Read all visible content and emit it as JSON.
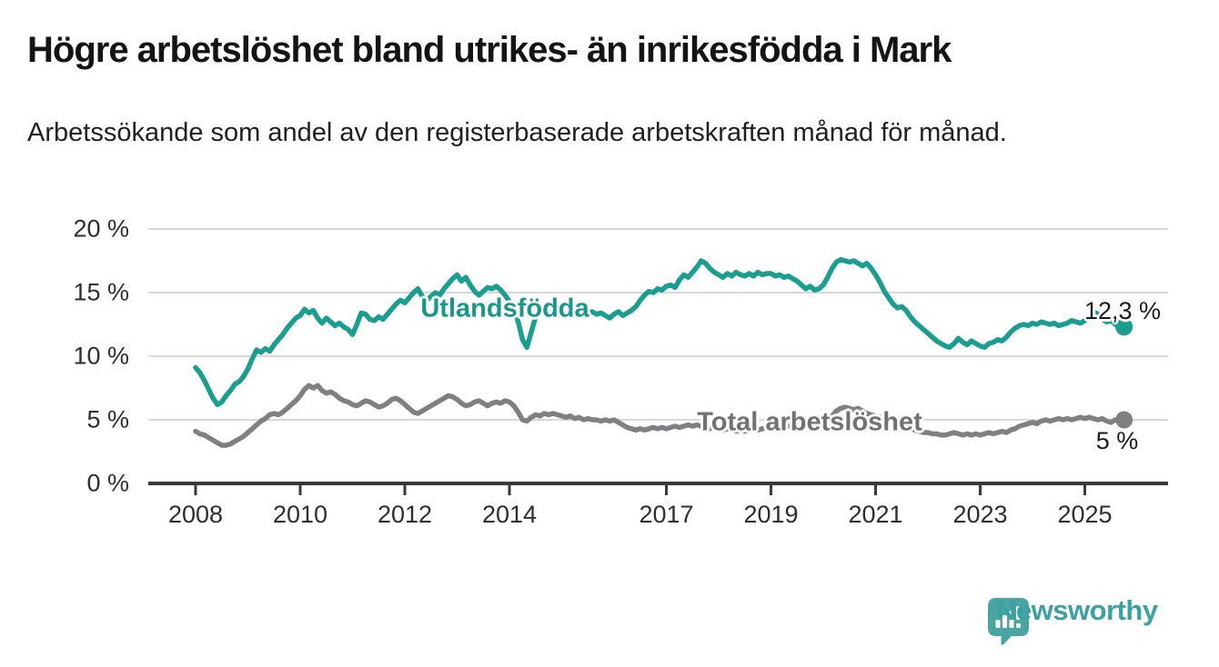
{
  "header": {
    "title": "Högre arbetslöshet bland utrikes- än inrikesfödda i Mark",
    "subtitle": "Arbetssökande som andel av den registerbaserade arbetskraften månad för månad."
  },
  "chart_data": {
    "type": "line",
    "title": "Högre arbetslöshet bland utrikes- än inrikesfödda i Mark",
    "unit": "%",
    "grid": "horizontal",
    "legend_position": "inline-on-line",
    "x_axis": {
      "ticks": [
        {
          "v": 2008,
          "label": "2008"
        },
        {
          "v": 2010,
          "label": "2010"
        },
        {
          "v": 2012,
          "label": "2012"
        },
        {
          "v": 2014,
          "label": "2014"
        },
        {
          "v": 2017,
          "label": "2017"
        },
        {
          "v": 2019,
          "label": "2019"
        },
        {
          "v": 2021,
          "label": "2021"
        },
        {
          "v": 2023,
          "label": "2023"
        },
        {
          "v": 2025,
          "label": "2025"
        }
      ]
    },
    "y_axis": {
      "range": [
        0,
        20
      ],
      "ticks": [
        {
          "v": 0,
          "label": "0 %"
        },
        {
          "v": 5,
          "label": "5 %"
        },
        {
          "v": 10,
          "label": "10 %"
        },
        {
          "v": 15,
          "label": "15 %"
        },
        {
          "v": 20,
          "label": "20 %"
        }
      ]
    },
    "series": [
      {
        "name": "Utlandsfödda",
        "color": "#1a9e8f",
        "start_year": 2008,
        "start_month": 1,
        "frequency": "monthly",
        "end_label": "12,3 %",
        "end_value": 12.3,
        "values": [
          9.1,
          8.7,
          8.1,
          7.4,
          6.7,
          6.2,
          6.4,
          6.9,
          7.3,
          7.8,
          8.0,
          8.4,
          9.0,
          9.8,
          10.5,
          10.3,
          10.6,
          10.4,
          10.9,
          11.3,
          11.7,
          12.2,
          12.6,
          13.0,
          13.2,
          13.7,
          13.4,
          13.6,
          13.0,
          12.6,
          13.0,
          12.7,
          12.4,
          12.6,
          12.3,
          12.1,
          11.7,
          12.5,
          13.4,
          13.3,
          12.9,
          12.8,
          13.1,
          12.9,
          13.3,
          13.7,
          14.1,
          14.4,
          14.2,
          14.6,
          15.0,
          15.3,
          14.7,
          14.4,
          14.7,
          15.0,
          14.8,
          15.3,
          15.7,
          16.1,
          16.4,
          15.9,
          16.2,
          15.6,
          15.1,
          14.8,
          15.1,
          15.4,
          15.3,
          15.5,
          15.2,
          14.8,
          14.3,
          13.7,
          12.7,
          11.3,
          10.7,
          11.9,
          13.1,
          13.4,
          13.3,
          13.5,
          13.4,
          13.2,
          13.4,
          13.2,
          13.5,
          13.3,
          13.4,
          13.2,
          13.4,
          13.5,
          13.3,
          13.4,
          13.2,
          13.0,
          13.3,
          13.5,
          13.2,
          13.4,
          13.6,
          13.9,
          14.4,
          14.8,
          15.1,
          15.0,
          15.3,
          15.2,
          15.5,
          15.6,
          15.4,
          16.0,
          16.4,
          16.2,
          16.6,
          17.0,
          17.5,
          17.3,
          16.9,
          16.6,
          16.4,
          16.2,
          16.5,
          16.3,
          16.6,
          16.4,
          16.3,
          16.5,
          16.3,
          16.6,
          16.4,
          16.5,
          16.5,
          16.3,
          16.4,
          16.2,
          16.3,
          16.1,
          15.9,
          15.6,
          15.3,
          15.5,
          15.2,
          15.3,
          15.6,
          16.2,
          16.9,
          17.4,
          17.6,
          17.5,
          17.4,
          17.5,
          17.3,
          17.1,
          17.3,
          16.9,
          16.4,
          15.8,
          15.1,
          14.6,
          14.1,
          13.8,
          13.9,
          13.6,
          13.1,
          12.7,
          12.4,
          12.1,
          11.8,
          11.5,
          11.2,
          11.0,
          10.8,
          10.7,
          11.0,
          11.4,
          11.1,
          10.9,
          11.2,
          11.0,
          10.8,
          10.7,
          11.0,
          11.1,
          11.3,
          11.2,
          11.5,
          11.9,
          12.2,
          12.4,
          12.5,
          12.4,
          12.6,
          12.5,
          12.7,
          12.6,
          12.5,
          12.6,
          12.4,
          12.5,
          12.6,
          12.8,
          12.7,
          12.6,
          12.8,
          13.1,
          13.5,
          13.3,
          12.9,
          12.7,
          12.8,
          12.5,
          12.3,
          12.3
        ]
      },
      {
        "name": "Total arbetslöshet",
        "color": "#808084",
        "start_year": 2008,
        "start_month": 1,
        "frequency": "monthly",
        "end_label": "5 %",
        "end_value": 5.0,
        "values": [
          4.1,
          3.9,
          3.8,
          3.6,
          3.4,
          3.2,
          3.0,
          3.0,
          3.1,
          3.3,
          3.5,
          3.7,
          4.0,
          4.3,
          4.6,
          4.9,
          5.1,
          5.4,
          5.5,
          5.4,
          5.6,
          5.9,
          6.2,
          6.5,
          6.9,
          7.4,
          7.7,
          7.5,
          7.7,
          7.3,
          7.1,
          7.2,
          7.0,
          6.7,
          6.5,
          6.4,
          6.2,
          6.1,
          6.3,
          6.5,
          6.4,
          6.2,
          6.0,
          6.1,
          6.3,
          6.6,
          6.7,
          6.5,
          6.2,
          5.9,
          5.6,
          5.5,
          5.7,
          5.9,
          6.1,
          6.3,
          6.5,
          6.7,
          6.9,
          6.8,
          6.6,
          6.3,
          6.1,
          6.2,
          6.4,
          6.5,
          6.3,
          6.1,
          6.3,
          6.4,
          6.3,
          6.5,
          6.4,
          6.1,
          5.6,
          5.0,
          4.9,
          5.2,
          5.4,
          5.3,
          5.5,
          5.4,
          5.5,
          5.4,
          5.3,
          5.2,
          5.3,
          5.1,
          5.2,
          5.0,
          5.1,
          5.0,
          5.0,
          4.9,
          5.0,
          4.9,
          5.0,
          4.8,
          4.6,
          4.4,
          4.3,
          4.2,
          4.3,
          4.2,
          4.3,
          4.4,
          4.3,
          4.4,
          4.3,
          4.4,
          4.5,
          4.4,
          4.5,
          4.6,
          4.5,
          4.6,
          4.5,
          4.4,
          4.3,
          4.4,
          4.3,
          4.2,
          4.3,
          4.2,
          4.1,
          4.2,
          4.1,
          4.2,
          4.3,
          4.2,
          4.3,
          4.4,
          4.3,
          4.4,
          4.5,
          4.4,
          4.5,
          4.6,
          4.5,
          4.6,
          4.7,
          4.6,
          4.7,
          4.8,
          4.9,
          5.0,
          5.3,
          5.7,
          5.9,
          6.0,
          5.9,
          5.8,
          5.9,
          5.7,
          5.5,
          5.4,
          5.3,
          5.2,
          5.1,
          5.0,
          4.8,
          4.7,
          4.6,
          4.5,
          4.3,
          4.2,
          4.1,
          4.0,
          4.0,
          3.9,
          3.9,
          3.8,
          3.8,
          3.9,
          4.0,
          3.9,
          3.8,
          3.9,
          3.8,
          3.9,
          3.8,
          3.9,
          4.0,
          3.9,
          4.0,
          4.1,
          4.0,
          4.2,
          4.3,
          4.5,
          4.6,
          4.7,
          4.8,
          4.7,
          4.9,
          5.0,
          4.9,
          5.0,
          5.1,
          5.0,
          5.1,
          5.0,
          5.1,
          5.2,
          5.1,
          5.2,
          5.1,
          5.0,
          5.1,
          4.9,
          4.8,
          5.0,
          5.0,
          5.0
        ]
      }
    ],
    "style": {
      "grid_color": "#d8d8d8",
      "axis_color": "#3a3a3a",
      "tick_text_color": "#2e2e2e"
    }
  },
  "logo": {
    "text": "Newsworthy",
    "color": "#3ba1a1",
    "icon": "speech-bubble-bar-chart-exclamation"
  }
}
